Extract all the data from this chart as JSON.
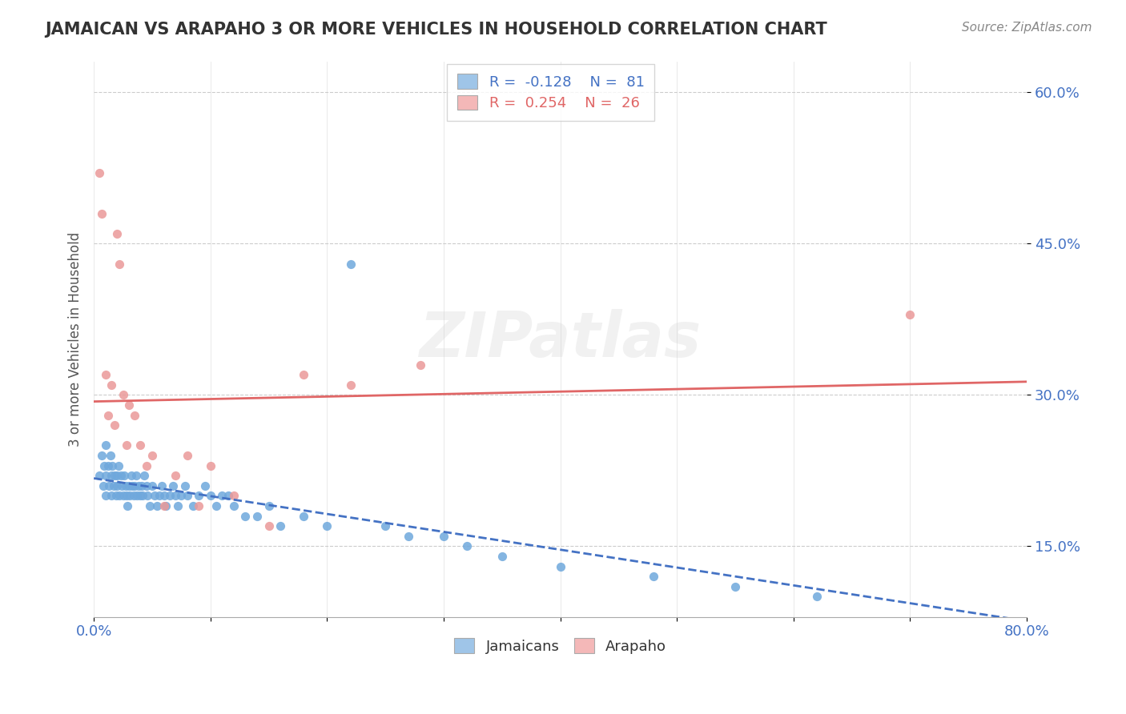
{
  "title": "JAMAICAN VS ARAPAHO 3 OR MORE VEHICLES IN HOUSEHOLD CORRELATION CHART",
  "source": "Source: ZipAtlas.com",
  "ylabel": "3 or more Vehicles in Household",
  "xmin": 0.0,
  "xmax": 0.8,
  "ymin": 0.08,
  "ymax": 0.63,
  "legend_r1": "-0.128",
  "legend_n1": "81",
  "legend_r2": "0.254",
  "legend_n2": "26",
  "jamaican_color": "#6fa8dc",
  "arapaho_color": "#ea9999",
  "jamaican_color_light": "#9fc5e8",
  "arapaho_color_light": "#f4b8b8",
  "trend_blue": "#4472c4",
  "trend_pink": "#e06666",
  "watermark": "ZIPatlas",
  "jamaican_x": [
    0.005,
    0.007,
    0.008,
    0.009,
    0.01,
    0.01,
    0.01,
    0.012,
    0.013,
    0.014,
    0.015,
    0.015,
    0.016,
    0.017,
    0.018,
    0.019,
    0.02,
    0.02,
    0.021,
    0.022,
    0.023,
    0.024,
    0.025,
    0.026,
    0.027,
    0.028,
    0.029,
    0.03,
    0.031,
    0.032,
    0.033,
    0.034,
    0.035,
    0.036,
    0.037,
    0.038,
    0.04,
    0.041,
    0.042,
    0.043,
    0.045,
    0.046,
    0.048,
    0.05,
    0.052,
    0.054,
    0.056,
    0.058,
    0.06,
    0.062,
    0.065,
    0.068,
    0.07,
    0.072,
    0.075,
    0.078,
    0.08,
    0.085,
    0.09,
    0.095,
    0.1,
    0.105,
    0.11,
    0.115,
    0.12,
    0.13,
    0.14,
    0.15,
    0.16,
    0.18,
    0.2,
    0.22,
    0.25,
    0.27,
    0.3,
    0.32,
    0.35,
    0.4,
    0.48,
    0.55,
    0.62
  ],
  "jamaican_y": [
    0.22,
    0.24,
    0.21,
    0.23,
    0.25,
    0.2,
    0.22,
    0.23,
    0.21,
    0.24,
    0.22,
    0.2,
    0.23,
    0.21,
    0.22,
    0.2,
    0.22,
    0.21,
    0.23,
    0.2,
    0.22,
    0.21,
    0.2,
    0.22,
    0.21,
    0.2,
    0.19,
    0.21,
    0.2,
    0.22,
    0.21,
    0.2,
    0.21,
    0.22,
    0.2,
    0.21,
    0.2,
    0.21,
    0.2,
    0.22,
    0.21,
    0.2,
    0.19,
    0.21,
    0.2,
    0.19,
    0.2,
    0.21,
    0.2,
    0.19,
    0.2,
    0.21,
    0.2,
    0.19,
    0.2,
    0.21,
    0.2,
    0.19,
    0.2,
    0.21,
    0.2,
    0.19,
    0.2,
    0.2,
    0.19,
    0.18,
    0.18,
    0.19,
    0.17,
    0.18,
    0.17,
    0.43,
    0.17,
    0.16,
    0.16,
    0.15,
    0.14,
    0.13,
    0.12,
    0.11,
    0.1
  ],
  "arapaho_x": [
    0.005,
    0.007,
    0.01,
    0.012,
    0.015,
    0.018,
    0.02,
    0.022,
    0.025,
    0.028,
    0.03,
    0.035,
    0.04,
    0.045,
    0.05,
    0.06,
    0.07,
    0.08,
    0.09,
    0.1,
    0.12,
    0.15,
    0.18,
    0.22,
    0.28,
    0.7
  ],
  "arapaho_y": [
    0.52,
    0.48,
    0.32,
    0.28,
    0.31,
    0.27,
    0.46,
    0.43,
    0.3,
    0.25,
    0.29,
    0.28,
    0.25,
    0.23,
    0.24,
    0.19,
    0.22,
    0.24,
    0.19,
    0.23,
    0.2,
    0.17,
    0.32,
    0.31,
    0.33,
    0.38
  ]
}
